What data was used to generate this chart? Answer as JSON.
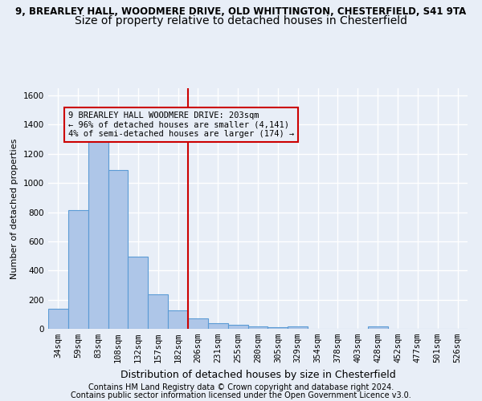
{
  "title_line1": "9, BREARLEY HALL, WOODMERE DRIVE, OLD WHITTINGTON, CHESTERFIELD, S41 9TA",
  "title_line2": "Size of property relative to detached houses in Chesterfield",
  "xlabel": "Distribution of detached houses by size in Chesterfield",
  "ylabel": "Number of detached properties",
  "categories": [
    "34sqm",
    "59sqm",
    "83sqm",
    "108sqm",
    "132sqm",
    "157sqm",
    "182sqm",
    "206sqm",
    "231sqm",
    "255sqm",
    "280sqm",
    "305sqm",
    "329sqm",
    "354sqm",
    "378sqm",
    "403sqm",
    "428sqm",
    "452sqm",
    "477sqm",
    "501sqm",
    "526sqm"
  ],
  "values": [
    140,
    815,
    1285,
    1090,
    495,
    238,
    128,
    70,
    40,
    28,
    15,
    10,
    18,
    0,
    0,
    0,
    15,
    0,
    0,
    0,
    0
  ],
  "bar_color": "#aec6e8",
  "bar_edge_color": "#5b9bd5",
  "vline_color": "#cc0000",
  "annotation_text": "9 BREARLEY HALL WOODMERE DRIVE: 203sqm\n← 96% of detached houses are smaller (4,141)\n4% of semi-detached houses are larger (174) →",
  "annotation_box_color": "#cc0000",
  "ylim": [
    0,
    1650
  ],
  "yticks": [
    0,
    200,
    400,
    600,
    800,
    1000,
    1200,
    1400,
    1600
  ],
  "background_color": "#e8eef7",
  "grid_color": "#ffffff",
  "footnote1": "Contains HM Land Registry data © Crown copyright and database right 2024.",
  "footnote2": "Contains public sector information licensed under the Open Government Licence v3.0.",
  "title1_fontsize": 8.5,
  "title2_fontsize": 10,
  "axis_label_fontsize": 9,
  "ylabel_fontsize": 8,
  "tick_fontsize": 7.5,
  "annotation_fontsize": 7.5,
  "footnote_fontsize": 7
}
